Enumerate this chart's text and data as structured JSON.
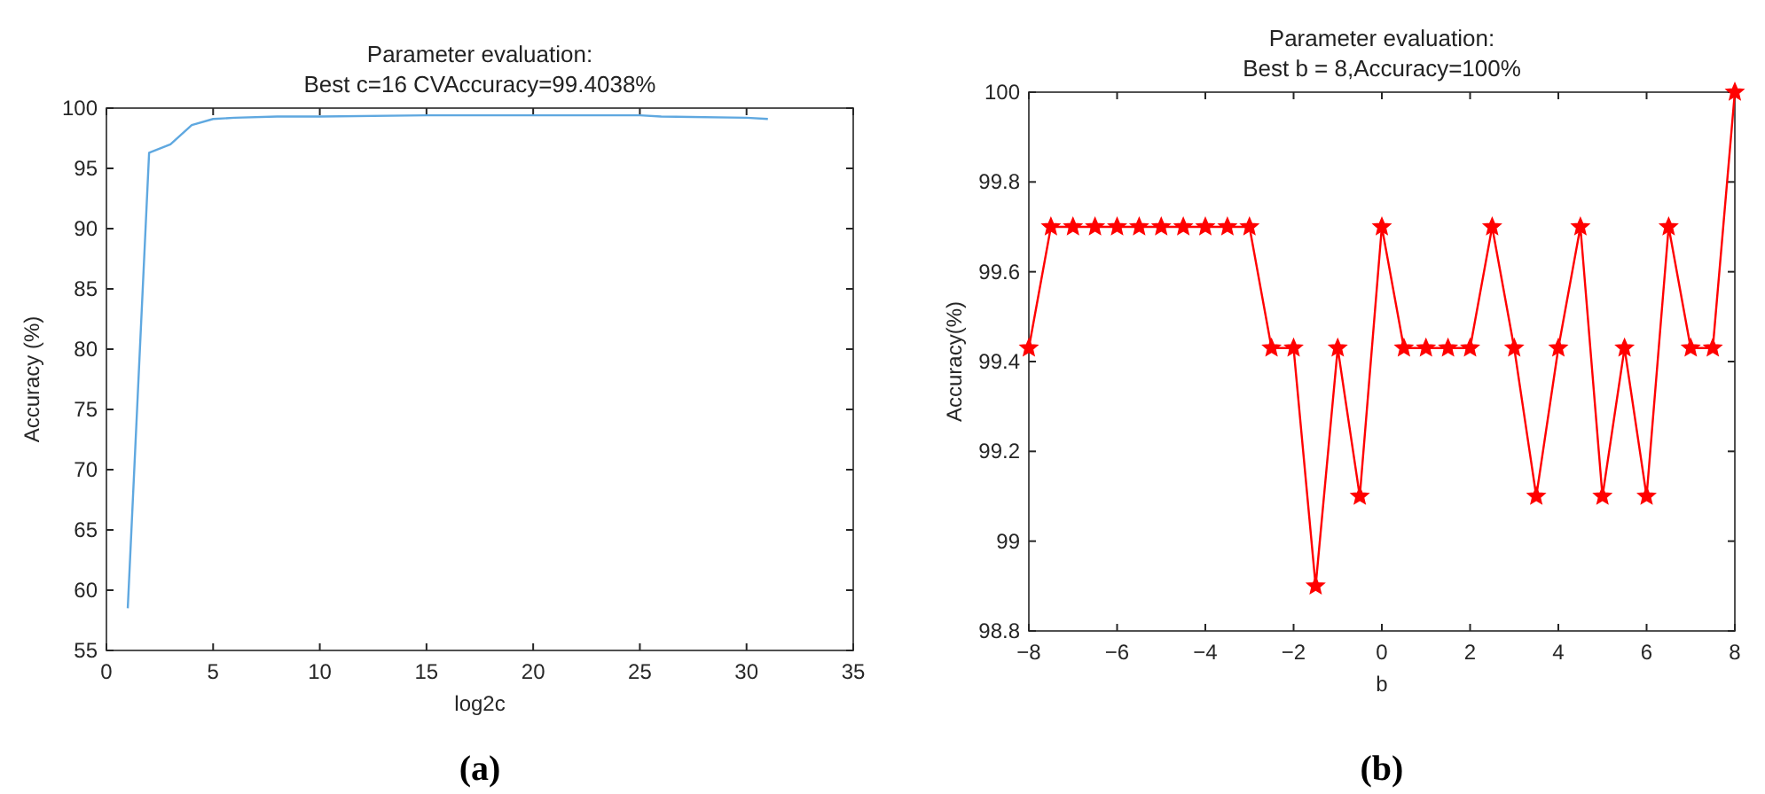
{
  "chart_data": [
    {
      "type": "line",
      "title": "Parameter evaluation:\nBest c=16 CVAccuracy=99.4038%",
      "xlabel": "log2c",
      "ylabel": "Accuracy (%)",
      "x": [
        1,
        2,
        3,
        4,
        5,
        6,
        8,
        10,
        15,
        20,
        25,
        26,
        30,
        31
      ],
      "series": [
        {
          "color": "#5fa8e0",
          "values": [
            58.5,
            96.3,
            97,
            98.6,
            99.1,
            99.2,
            99.3,
            99.3,
            99.4,
            99.4,
            99.4,
            99.3,
            99.2,
            99.1
          ]
        }
      ],
      "xlim": [
        0,
        35
      ],
      "xticks": [
        0,
        5,
        10,
        15,
        20,
        25,
        30,
        35
      ],
      "ylim": [
        55,
        100
      ],
      "yticks": [
        55,
        60,
        65,
        70,
        75,
        80,
        85,
        90,
        95,
        100
      ],
      "grid": false,
      "marker": "none",
      "line_style": "solid",
      "annotations": [
        "(a)"
      ]
    },
    {
      "type": "line",
      "title": "Parameter evaluation:\nBest b = 8,Accuracy=100%",
      "xlabel": "b",
      "ylabel": "Accuracy(%)",
      "x": [
        -8,
        -7.5,
        -7,
        -6.5,
        -6,
        -5.5,
        -5,
        -4.5,
        -4,
        -3.5,
        -3,
        -2.5,
        -2,
        -1.5,
        -1,
        -0.5,
        0,
        0.5,
        1,
        1.5,
        2,
        2.5,
        3,
        3.5,
        4,
        4.5,
        5,
        5.5,
        6,
        6.5,
        7,
        7.5,
        8
      ],
      "series": [
        {
          "color": "#ff0000",
          "values": [
            99.43,
            99.7,
            99.7,
            99.7,
            99.7,
            99.7,
            99.7,
            99.7,
            99.7,
            99.7,
            99.7,
            99.43,
            99.43,
            98.9,
            99.43,
            99.1,
            99.7,
            99.43,
            99.43,
            99.43,
            99.43,
            99.7,
            99.43,
            99.1,
            99.43,
            99.7,
            99.1,
            99.43,
            99.1,
            99.7,
            99.43,
            99.43,
            100
          ]
        }
      ],
      "xlim": [
        -8,
        8
      ],
      "xticks": [
        {
          "value": -8,
          "label": "−8"
        },
        {
          "value": -6,
          "label": "−6"
        },
        {
          "value": -4,
          "label": "−4"
        },
        {
          "value": -2,
          "label": "−2"
        },
        0,
        2,
        4,
        6,
        8
      ],
      "ylim": [
        98.8,
        100
      ],
      "yticks": [
        98.8,
        99,
        99.2,
        99.4,
        99.6,
        99.8,
        100
      ],
      "grid": false,
      "marker": "star",
      "line_style": "solid",
      "annotations": [
        "(b)"
      ]
    }
  ]
}
